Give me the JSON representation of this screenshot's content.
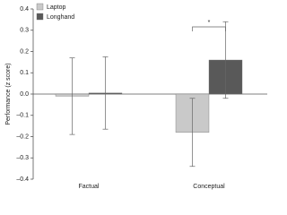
{
  "chart_data": {
    "type": "bar",
    "y_label": "Performance (z score)",
    "categories": [
      "Factual",
      "Conceptual"
    ],
    "series": [
      {
        "name": "Laptop",
        "color": "#c9c9c9",
        "values": [
          -0.01,
          -0.18
        ],
        "errors": [
          0.18,
          0.16
        ]
      },
      {
        "name": "Longhand",
        "color": "#595959",
        "values": [
          0.005,
          0.16
        ],
        "errors": [
          0.17,
          0.18
        ]
      }
    ],
    "annotation": "*",
    "ylim": [
      -0.4,
      0.4
    ],
    "yticks": [
      {
        "value": -0.4,
        "label": "–0.4"
      },
      {
        "value": -0.3,
        "label": "–0.3"
      },
      {
        "value": -0.2,
        "label": "–0.2"
      },
      {
        "value": -0.1,
        "label": "–0.1"
      },
      {
        "value": 0,
        "label": "0.0"
      },
      0.1,
      0.2,
      0.3,
      0.4
    ],
    "legend": "top-left"
  }
}
